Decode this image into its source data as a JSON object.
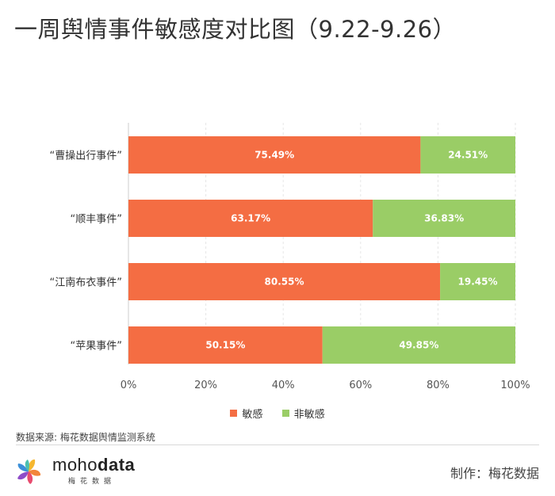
{
  "title": "一周舆情事件敏感度对比图（9.22-9.26）",
  "chart_data": {
    "type": "bar",
    "orientation": "horizontal",
    "stacked": true,
    "categories": [
      "“曹操出行事件”",
      "“顺丰事件”",
      "“江南布衣事件”",
      "“苹果事件”"
    ],
    "series": [
      {
        "name": "敏感",
        "color": "#F46D43",
        "values": [
          75.49,
          63.17,
          80.55,
          50.15
        ],
        "labels": [
          "75.49%",
          "63.17%",
          "80.55%",
          "50.15%"
        ]
      },
      {
        "name": "非敏感",
        "color": "#9ACD66",
        "values": [
          24.51,
          36.83,
          19.45,
          49.85
        ],
        "labels": [
          "24.51%",
          "36.83%",
          "19.45%",
          "49.85%"
        ]
      }
    ],
    "xlim": [
      0,
      100
    ],
    "xticks": [
      "0%",
      "20%",
      "40%",
      "60%",
      "80%",
      "100%"
    ],
    "grid": true,
    "legend_position": "bottom"
  },
  "footer": {
    "source": "数据来源: 梅花数据舆情监测系统",
    "logo_text_light": "moho",
    "logo_text_bold": "data",
    "logo_subtitle": "梅花数据",
    "credit": "制作：梅花数据"
  }
}
